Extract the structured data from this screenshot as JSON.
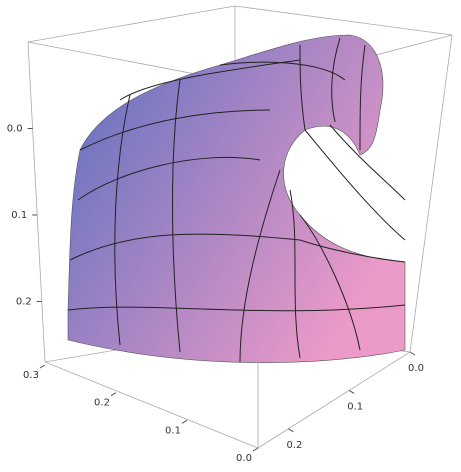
{
  "chart_data": {
    "type": "surface3d",
    "xlim": [
      0,
      0.3
    ],
    "xticks": [
      {
        "value": 0.3,
        "label": "0.3"
      },
      {
        "value": 0.2,
        "label": "0.2"
      },
      {
        "value": 0.1,
        "label": "0.1"
      },
      {
        "value": 0,
        "label": "0.0"
      }
    ],
    "ylim": [
      0,
      0.25
    ],
    "yticks": [
      {
        "value": 0,
        "label": "0.0"
      },
      {
        "value": 0.1,
        "label": "0.1"
      },
      {
        "value": 0.2,
        "label": "0.2"
      }
    ],
    "zlim": [
      -0.1,
      0.27
    ],
    "zticks": [
      {
        "value": 0,
        "label": "0.0"
      },
      {
        "value": 0.1,
        "label": "0.1"
      },
      {
        "value": 0.2,
        "label": "0.2"
      }
    ],
    "colors": [
      "#5a6fc0",
      "#ec9ac8"
    ]
  }
}
